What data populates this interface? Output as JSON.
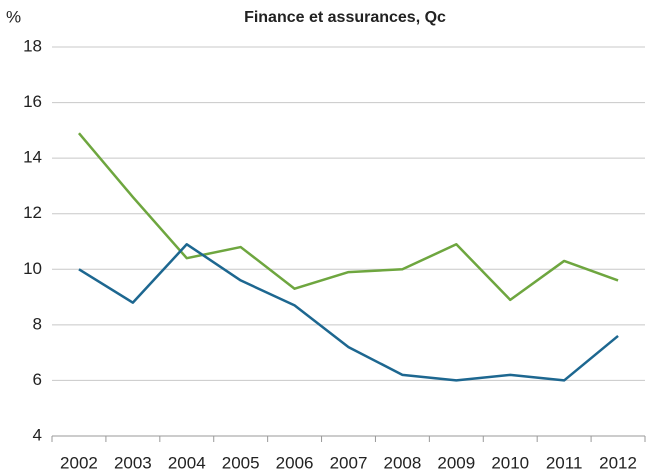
{
  "chart_data": {
    "type": "line",
    "title": "Finance et assurances, Qc",
    "y_label": "%",
    "categories": [
      "2002",
      "2003",
      "2004",
      "2005",
      "2006",
      "2007",
      "2008",
      "2009",
      "2010",
      "2011",
      "2012"
    ],
    "series": [
      {
        "color": "#6ea63f",
        "values": [
          14.9,
          12.6,
          10.4,
          10.8,
          9.3,
          9.9,
          10.0,
          10.9,
          8.9,
          10.3,
          9.6
        ]
      },
      {
        "color": "#1d6790",
        "values": [
          10.0,
          8.8,
          10.9,
          9.6,
          8.7,
          7.2,
          6.2,
          6.0,
          6.2,
          6.0,
          7.6
        ]
      }
    ],
    "ylim": [
      4,
      18
    ],
    "yticks": [
      4,
      6,
      8,
      10,
      12,
      14,
      16,
      18
    ],
    "grid": true
  }
}
